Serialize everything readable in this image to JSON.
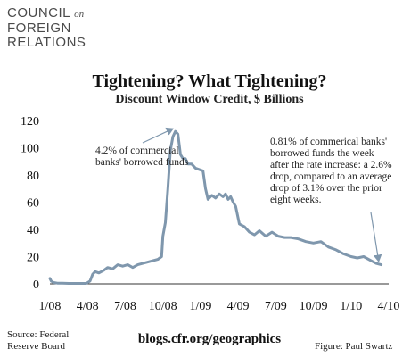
{
  "logo": {
    "line1": "COUNCIL",
    "line1_suffix": "on",
    "line2": "FOREIGN",
    "line3": "RELATIONS"
  },
  "footer": {
    "source_line1": "Source: Federal",
    "source_line2": "Reserve Board",
    "blog": "blogs.cfr.org/geographics",
    "credit": "Figure: Paul Swartz"
  },
  "colors": {
    "line": "#7f97ad",
    "axis": "#333333"
  },
  "chart_data": {
    "type": "line",
    "title": "Tightening? What Tightening?",
    "subtitle": "Discount Window Credit, $ Billions",
    "xlabel": "",
    "ylabel": "",
    "x_tick_labels": [
      "1/08",
      "4/08",
      "7/08",
      "10/08",
      "1/09",
      "4/09",
      "7/09",
      "10/09",
      "1/10",
      "4/10"
    ],
    "y_ticks": [
      0,
      20,
      40,
      60,
      80,
      100,
      120
    ],
    "ylim": [
      0,
      120
    ],
    "xlim": [
      0,
      27
    ],
    "x_unit": "months since Jan 2008",
    "grid": false,
    "legend": "none",
    "series": [
      {
        "name": "",
        "x": [
          0.0,
          0.1,
          0.3,
          0.6,
          1.0,
          1.5,
          2.0,
          2.5,
          2.9,
          3.2,
          3.4,
          3.6,
          3.9,
          4.3,
          4.6,
          5.0,
          5.4,
          5.8,
          6.2,
          6.6,
          7.0,
          7.4,
          7.8,
          8.2,
          8.6,
          8.9,
          9.0,
          9.2,
          9.4,
          9.6,
          9.8,
          10.0,
          10.2,
          10.4,
          10.6,
          10.8,
          11.0,
          11.3,
          11.6,
          11.9,
          12.2,
          12.4,
          12.6,
          12.9,
          13.2,
          13.5,
          13.8,
          14.0,
          14.2,
          14.4,
          14.6,
          14.8,
          15.1,
          15.5,
          15.9,
          16.3,
          16.7,
          17.2,
          17.7,
          18.2,
          18.7,
          19.2,
          19.8,
          20.4,
          21.0,
          21.6,
          22.2,
          22.8,
          23.4,
          24.0,
          24.5,
          25.0,
          25.6,
          26.0,
          26.4
        ],
        "values": [
          4,
          2,
          1,
          0.5,
          0.5,
          0.3,
          0.3,
          0.3,
          0.3,
          2,
          7,
          9,
          8,
          10,
          12,
          11,
          14,
          13,
          14,
          12,
          14,
          15,
          16,
          17,
          18,
          20,
          35,
          45,
          70,
          98,
          108,
          112,
          110,
          95,
          92,
          92,
          88,
          88,
          85,
          84,
          83,
          70,
          62,
          65,
          63,
          66,
          64,
          66,
          62,
          64,
          60,
          57,
          44,
          42,
          38,
          36,
          39,
          35,
          38,
          35,
          34,
          34,
          33,
          31,
          30,
          31,
          27,
          25,
          22,
          20,
          19,
          20,
          17,
          15,
          14
        ]
      }
    ],
    "annotations": [
      {
        "lines": [
          "4.2% of commercial",
          "banks' borrowed funds"
        ],
        "target": [
          10.0,
          112
        ]
      },
      {
        "lines": [
          "0.81% of commerical banks'",
          "borrowed funds the week",
          "after the rate increase: a 2.6%",
          "drop, compared to an average",
          "drop of 3.1% over the prior",
          "eight weeks."
        ],
        "target": [
          26.3,
          14
        ]
      }
    ]
  }
}
